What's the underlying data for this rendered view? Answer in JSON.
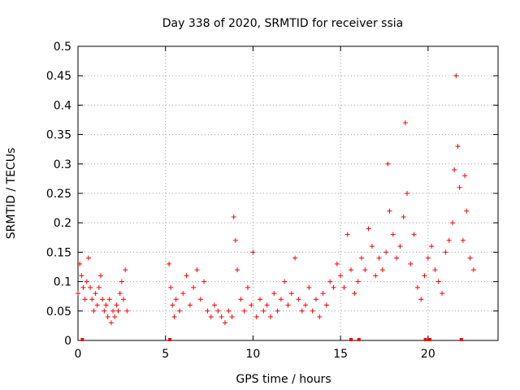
{
  "chart_data": {
    "type": "scatter",
    "title": "Day 338 of 2020, SRMTID for receiver ssia",
    "xlabel": "GPS time / hours",
    "ylabel": "SRMTID / TECUs",
    "xlim": [
      0,
      24
    ],
    "ylim": [
      0,
      0.5
    ],
    "xticks": [
      0,
      5,
      10,
      15,
      20
    ],
    "xtick_labels": [
      "0",
      "5",
      "10",
      "15",
      "20"
    ],
    "yticks": [
      0,
      0.05,
      0.1,
      0.15,
      0.2,
      0.25,
      0.3,
      0.35,
      0.4,
      0.45,
      0.5
    ],
    "ytick_labels": [
      "0",
      "0.05",
      "0.1",
      "0.15",
      "0.2",
      "0.25",
      "0.3",
      "0.35",
      "0.4",
      "0.45",
      "0.5"
    ],
    "grid": true,
    "marker": "+",
    "color": "#ff0000",
    "series": [
      {
        "name": "SRMTID",
        "x": [
          0.0,
          0.1,
          0.2,
          0.3,
          0.4,
          0.5,
          0.6,
          0.7,
          0.8,
          0.9,
          1.0,
          1.1,
          1.2,
          1.3,
          1.4,
          1.5,
          1.6,
          1.7,
          1.8,
          1.9,
          2.0,
          2.1,
          2.2,
          2.3,
          2.4,
          2.5,
          2.6,
          2.7,
          2.8,
          5.2,
          5.3,
          5.4,
          5.5,
          5.6,
          5.8,
          6.0,
          6.2,
          6.4,
          6.6,
          6.8,
          7.0,
          7.2,
          7.4,
          7.6,
          7.8,
          8.0,
          8.2,
          8.4,
          8.6,
          8.8,
          8.9,
          9.0,
          9.1,
          9.3,
          9.5,
          9.7,
          9.9,
          10.0,
          10.2,
          10.4,
          10.6,
          10.8,
          11.0,
          11.2,
          11.4,
          11.6,
          11.8,
          12.0,
          12.2,
          12.4,
          12.6,
          12.8,
          13.0,
          13.2,
          13.4,
          13.6,
          13.8,
          14.0,
          14.2,
          14.4,
          14.6,
          14.8,
          15.0,
          15.2,
          15.4,
          15.6,
          15.8,
          16.0,
          16.2,
          16.4,
          16.6,
          16.8,
          17.0,
          17.2,
          17.4,
          17.6,
          17.7,
          17.8,
          18.0,
          18.2,
          18.4,
          18.6,
          18.7,
          18.8,
          19.0,
          19.2,
          19.4,
          19.6,
          19.8,
          20.0,
          20.2,
          20.4,
          20.6,
          20.8,
          21.0,
          21.2,
          21.4,
          21.5,
          21.6,
          21.7,
          21.8,
          22.0,
          22.1,
          22.2,
          22.4,
          22.6
        ],
        "y": [
          0.08,
          0.13,
          0.11,
          0.09,
          0.07,
          0.1,
          0.14,
          0.09,
          0.07,
          0.05,
          0.08,
          0.06,
          0.09,
          0.11,
          0.07,
          0.05,
          0.06,
          0.04,
          0.07,
          0.03,
          0.05,
          0.04,
          0.06,
          0.05,
          0.08,
          0.1,
          0.07,
          0.12,
          0.05,
          0.13,
          0.09,
          0.06,
          0.04,
          0.07,
          0.05,
          0.08,
          0.11,
          0.06,
          0.09,
          0.12,
          0.07,
          0.1,
          0.05,
          0.04,
          0.06,
          0.05,
          0.04,
          0.03,
          0.05,
          0.04,
          0.21,
          0.17,
          0.12,
          0.07,
          0.05,
          0.09,
          0.06,
          0.15,
          0.04,
          0.07,
          0.05,
          0.06,
          0.04,
          0.08,
          0.05,
          0.07,
          0.1,
          0.06,
          0.08,
          0.14,
          0.07,
          0.05,
          0.06,
          0.09,
          0.05,
          0.07,
          0.04,
          0.08,
          0.06,
          0.1,
          0.09,
          0.13,
          0.11,
          0.09,
          0.18,
          0.12,
          0.08,
          0.1,
          0.14,
          0.12,
          0.19,
          0.16,
          0.11,
          0.14,
          0.12,
          0.15,
          0.3,
          0.22,
          0.18,
          0.14,
          0.16,
          0.21,
          0.37,
          0.25,
          0.13,
          0.18,
          0.09,
          0.07,
          0.11,
          0.14,
          0.16,
          0.12,
          0.1,
          0.08,
          0.15,
          0.17,
          0.2,
          0.29,
          0.45,
          0.33,
          0.26,
          0.17,
          0.28,
          0.22,
          0.14,
          0.12
        ]
      }
    ],
    "gap_markers_x": [
      0.25,
      5.25,
      15.6,
      16.05,
      19.85,
      20.1,
      21.9
    ]
  }
}
